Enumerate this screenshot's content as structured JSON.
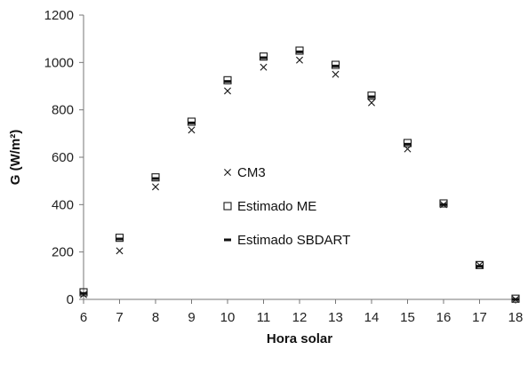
{
  "chart_data": {
    "type": "scatter",
    "xlabel": "Hora solar",
    "ylabel": "G (W/m²)",
    "xlim": [
      6,
      18
    ],
    "ylim": [
      0,
      1200
    ],
    "x_ticks": [
      6,
      7,
      8,
      9,
      10,
      11,
      12,
      13,
      14,
      15,
      16,
      17,
      18
    ],
    "y_ticks": [
      0,
      200,
      400,
      600,
      800,
      1000,
      1200
    ],
    "grid": false,
    "legend_position": "center",
    "series": [
      {
        "name": "CM3",
        "marker": "x",
        "points": [
          {
            "x": 6,
            "y": 20
          },
          {
            "x": 7,
            "y": 205
          },
          {
            "x": 8,
            "y": 475
          },
          {
            "x": 9,
            "y": 715
          },
          {
            "x": 10,
            "y": 880
          },
          {
            "x": 11,
            "y": 980
          },
          {
            "x": 12,
            "y": 1010
          },
          {
            "x": 13,
            "y": 950
          },
          {
            "x": 14,
            "y": 830
          },
          {
            "x": 15,
            "y": 635
          },
          {
            "x": 16,
            "y": 400
          },
          {
            "x": 17,
            "y": 145
          },
          {
            "x": 18,
            "y": 0
          }
        ]
      },
      {
        "name": "Estimado ME",
        "marker": "square",
        "points": [
          {
            "x": 6,
            "y": 30
          },
          {
            "x": 7,
            "y": 260
          },
          {
            "x": 8,
            "y": 515
          },
          {
            "x": 9,
            "y": 750
          },
          {
            "x": 10,
            "y": 925
          },
          {
            "x": 11,
            "y": 1025
          },
          {
            "x": 12,
            "y": 1050
          },
          {
            "x": 13,
            "y": 990
          },
          {
            "x": 14,
            "y": 860
          },
          {
            "x": 15,
            "y": 660
          },
          {
            "x": 16,
            "y": 405
          },
          {
            "x": 17,
            "y": 145
          },
          {
            "x": 18,
            "y": 3
          }
        ]
      },
      {
        "name": "Estimado SBDART",
        "marker": "dash",
        "points": [
          {
            "x": 6,
            "y": 25
          },
          {
            "x": 7,
            "y": 255
          },
          {
            "x": 8,
            "y": 510
          },
          {
            "x": 9,
            "y": 745
          },
          {
            "x": 10,
            "y": 920
          },
          {
            "x": 11,
            "y": 1020
          },
          {
            "x": 12,
            "y": 1045
          },
          {
            "x": 13,
            "y": 985
          },
          {
            "x": 14,
            "y": 855
          },
          {
            "x": 15,
            "y": 655
          },
          {
            "x": 16,
            "y": 400
          },
          {
            "x": 17,
            "y": 140
          },
          {
            "x": 18,
            "y": 0
          }
        ]
      }
    ]
  }
}
